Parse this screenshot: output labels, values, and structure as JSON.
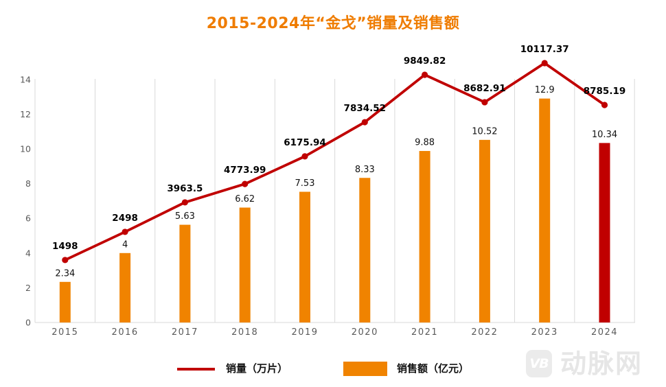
{
  "title": {
    "text": "2015-2024年“金戈”销量及销售额",
    "color": "#EF7C00"
  },
  "chart_data": {
    "type": "combo-line-bar",
    "title": "2015-2024年“金戈”销量及销售额",
    "categories": [
      "2015",
      "2016",
      "2017",
      "2018",
      "2019",
      "2020",
      "2021",
      "2022",
      "2023",
      "2024"
    ],
    "series": [
      {
        "name": "销量（万片）",
        "type": "line",
        "unit": "万片",
        "color": "#C00000",
        "values": [
          1498,
          2498,
          3963.5,
          4773.99,
          6175.94,
          7834.52,
          9849.82,
          8682.91,
          10117.37,
          8785.19
        ],
        "labels": [
          "1498",
          "2498",
          "3963.5",
          "4773.99",
          "6175.94",
          "7834.52",
          "9849.82",
          "8682.91",
          "10117.37",
          "8785.19"
        ],
        "plotted_left_axis_units": [
          3.6,
          5.22,
          6.92,
          7.98,
          9.57,
          11.54,
          14.27,
          12.69,
          14.94,
          12.53
        ]
      },
      {
        "name": "销售额（亿元）",
        "type": "bar",
        "unit": "亿元",
        "color": "#F08300",
        "last_bar_color": "#C00000",
        "values": [
          2.34,
          4,
          5.63,
          6.62,
          7.53,
          8.33,
          9.88,
          10.52,
          12.9,
          10.34
        ],
        "labels": [
          "2.34",
          "4",
          "5.63",
          "6.62",
          "7.53",
          "8.33",
          "9.88",
          "10.52",
          "12.9",
          "10.34"
        ]
      }
    ],
    "ylim": [
      0,
      14
    ],
    "yticks": [
      0,
      2,
      4,
      6,
      8,
      10,
      12,
      14
    ],
    "grid": "vertical-category-boundaries-only",
    "legend_position": "bottom",
    "axis_text_color": "#595959",
    "grid_color": "#D9D9D9",
    "label_text_color": "#111111"
  },
  "legend": {
    "items": [
      {
        "label": "销量（万片）",
        "swatch": "line",
        "color": "#C00000"
      },
      {
        "label": "销售额（亿元）",
        "swatch": "rect",
        "color": "#F08300"
      }
    ]
  },
  "watermark": {
    "badge": "VB",
    "text": "动脉网",
    "color": "#E6E6E6"
  }
}
